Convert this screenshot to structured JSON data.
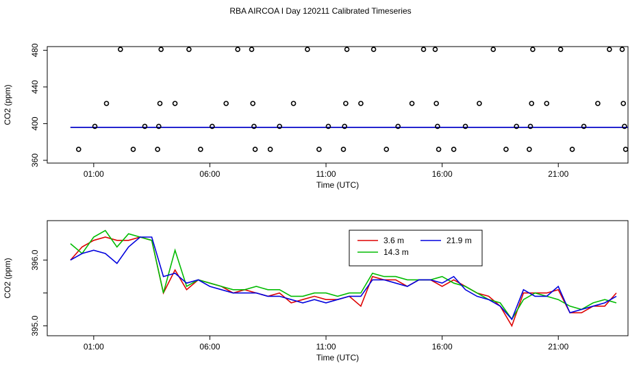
{
  "title": "RBA AIRCOA I  Day 120211  Calibrated Timeseries",
  "chart_data": [
    {
      "type": "scatter",
      "title": "",
      "xlabel": "Time (UTC)",
      "ylabel": "CO2 (ppm)",
      "x_unit": "hours UTC",
      "xlim": [
        -1.0,
        24.0
      ],
      "ylim": [
        357,
        484
      ],
      "x_ticks": [
        1,
        6,
        11,
        16,
        21
      ],
      "x_tick_labels": [
        "01:00",
        "06:00",
        "11:00",
        "16:00",
        "21:00"
      ],
      "y_ticks": [
        360,
        400,
        440,
        480
      ],
      "y_tick_labels": [
        "360",
        "400",
        "440",
        "480"
      ],
      "grid": false,
      "points": [
        {
          "x": 0.35,
          "y": 372
        },
        {
          "x": 1.05,
          "y": 397
        },
        {
          "x": 1.55,
          "y": 422
        },
        {
          "x": 2.15,
          "y": 481
        },
        {
          "x": 2.7,
          "y": 372
        },
        {
          "x": 3.2,
          "y": 397
        },
        {
          "x": 3.75,
          "y": 372
        },
        {
          "x": 3.8,
          "y": 397
        },
        {
          "x": 3.85,
          "y": 422
        },
        {
          "x": 3.9,
          "y": 481
        },
        {
          "x": 4.5,
          "y": 422
        },
        {
          "x": 5.1,
          "y": 481
        },
        {
          "x": 5.6,
          "y": 372
        },
        {
          "x": 6.1,
          "y": 397
        },
        {
          "x": 6.7,
          "y": 422
        },
        {
          "x": 7.2,
          "y": 481
        },
        {
          "x": 7.8,
          "y": 481
        },
        {
          "x": 7.85,
          "y": 422
        },
        {
          "x": 7.9,
          "y": 397
        },
        {
          "x": 7.95,
          "y": 372
        },
        {
          "x": 8.6,
          "y": 372
        },
        {
          "x": 9.0,
          "y": 397
        },
        {
          "x": 9.6,
          "y": 422
        },
        {
          "x": 10.2,
          "y": 481
        },
        {
          "x": 10.7,
          "y": 372
        },
        {
          "x": 11.1,
          "y": 397
        },
        {
          "x": 11.75,
          "y": 372
        },
        {
          "x": 11.8,
          "y": 397
        },
        {
          "x": 11.85,
          "y": 422
        },
        {
          "x": 11.9,
          "y": 481
        },
        {
          "x": 12.5,
          "y": 422
        },
        {
          "x": 13.05,
          "y": 481
        },
        {
          "x": 13.6,
          "y": 372
        },
        {
          "x": 14.1,
          "y": 397
        },
        {
          "x": 14.7,
          "y": 422
        },
        {
          "x": 15.2,
          "y": 481
        },
        {
          "x": 15.7,
          "y": 481
        },
        {
          "x": 15.75,
          "y": 422
        },
        {
          "x": 15.8,
          "y": 397
        },
        {
          "x": 15.85,
          "y": 372
        },
        {
          "x": 16.5,
          "y": 372
        },
        {
          "x": 17.0,
          "y": 397
        },
        {
          "x": 17.6,
          "y": 422
        },
        {
          "x": 18.2,
          "y": 481
        },
        {
          "x": 18.75,
          "y": 372
        },
        {
          "x": 19.2,
          "y": 397
        },
        {
          "x": 19.75,
          "y": 372
        },
        {
          "x": 19.8,
          "y": 397
        },
        {
          "x": 19.85,
          "y": 422
        },
        {
          "x": 19.9,
          "y": 481
        },
        {
          "x": 20.5,
          "y": 422
        },
        {
          "x": 21.1,
          "y": 481
        },
        {
          "x": 21.6,
          "y": 372
        },
        {
          "x": 22.1,
          "y": 397
        },
        {
          "x": 22.7,
          "y": 422
        },
        {
          "x": 23.2,
          "y": 481
        },
        {
          "x": 23.75,
          "y": 481
        },
        {
          "x": 23.8,
          "y": 422
        },
        {
          "x": 23.85,
          "y": 397
        },
        {
          "x": 23.9,
          "y": 372
        }
      ],
      "series": [
        {
          "name": "",
          "color": "#dd0000",
          "x": [
            0,
            24
          ],
          "values": [
            396,
            396
          ]
        },
        {
          "name": "",
          "color": "#00bb00",
          "x": [
            0,
            24
          ],
          "values": [
            396,
            396
          ]
        },
        {
          "name": "",
          "color": "#0000dd",
          "x": [
            0,
            24
          ],
          "values": [
            396,
            396
          ]
        }
      ]
    },
    {
      "type": "line",
      "title": "",
      "xlabel": "Time (UTC)",
      "ylabel": "CO2 (ppm)",
      "x_unit": "hours UTC",
      "xlim": [
        -1.0,
        24.0
      ],
      "ylim": [
        394.85,
        396.6
      ],
      "x_ticks": [
        1,
        6,
        11,
        16,
        21
      ],
      "x_tick_labels": [
        "01:00",
        "06:00",
        "11:00",
        "16:00",
        "21:00"
      ],
      "y_ticks": [
        395.0,
        395.5,
        396.0
      ],
      "y_tick_labels": [
        "395.0",
        "",
        "396.0"
      ],
      "grid": false,
      "legend": "top-right",
      "x": [
        0.0,
        0.5,
        1.0,
        1.5,
        2.0,
        2.5,
        3.0,
        3.5,
        4.0,
        4.5,
        5.0,
        5.5,
        6.0,
        6.5,
        7.0,
        7.5,
        8.0,
        8.5,
        9.0,
        9.5,
        10.0,
        10.5,
        11.0,
        11.5,
        12.0,
        12.5,
        13.0,
        13.5,
        14.0,
        14.5,
        15.0,
        15.5,
        16.0,
        16.5,
        17.0,
        17.5,
        18.0,
        18.5,
        19.0,
        19.5,
        20.0,
        20.5,
        21.0,
        21.5,
        22.0,
        22.5,
        23.0,
        23.5
      ],
      "series": [
        {
          "name": "3.6 m",
          "color": "#dd0000",
          "values": [
            396.0,
            396.2,
            396.3,
            396.35,
            396.3,
            396.3,
            396.35,
            396.3,
            395.5,
            395.85,
            395.55,
            395.7,
            395.65,
            395.6,
            395.5,
            395.55,
            395.5,
            395.45,
            395.5,
            395.35,
            395.4,
            395.45,
            395.4,
            395.4,
            395.45,
            395.3,
            395.75,
            395.7,
            395.7,
            395.6,
            395.7,
            395.7,
            395.6,
            395.7,
            395.6,
            395.5,
            395.45,
            395.3,
            395.0,
            395.5,
            395.5,
            395.5,
            395.55,
            395.2,
            395.2,
            395.3,
            395.3,
            395.5
          ]
        },
        {
          "name": "14.3 m",
          "color": "#00bb00",
          "values": [
            396.25,
            396.1,
            396.35,
            396.45,
            396.2,
            396.4,
            396.35,
            396.3,
            395.5,
            396.15,
            395.6,
            395.7,
            395.65,
            395.6,
            395.55,
            395.55,
            395.6,
            395.55,
            395.55,
            395.45,
            395.45,
            395.5,
            395.5,
            395.45,
            395.5,
            395.5,
            395.8,
            395.75,
            395.75,
            395.7,
            395.7,
            395.7,
            395.75,
            395.65,
            395.6,
            395.5,
            395.4,
            395.35,
            395.1,
            395.4,
            395.5,
            395.45,
            395.4,
            395.3,
            395.25,
            395.35,
            395.4,
            395.35
          ]
        },
        {
          "name": "21.9 m",
          "color": "#0000dd",
          "values": [
            396.0,
            396.1,
            396.15,
            396.1,
            395.95,
            396.2,
            396.35,
            396.35,
            395.75,
            395.8,
            395.65,
            395.7,
            395.6,
            395.55,
            395.5,
            395.5,
            395.5,
            395.45,
            395.45,
            395.4,
            395.35,
            395.4,
            395.35,
            395.4,
            395.45,
            395.45,
            395.7,
            395.7,
            395.65,
            395.6,
            395.7,
            395.7,
            395.65,
            395.75,
            395.55,
            395.45,
            395.4,
            395.3,
            395.1,
            395.55,
            395.45,
            395.45,
            395.6,
            395.2,
            395.25,
            395.3,
            395.35,
            395.45
          ]
        }
      ]
    }
  ]
}
